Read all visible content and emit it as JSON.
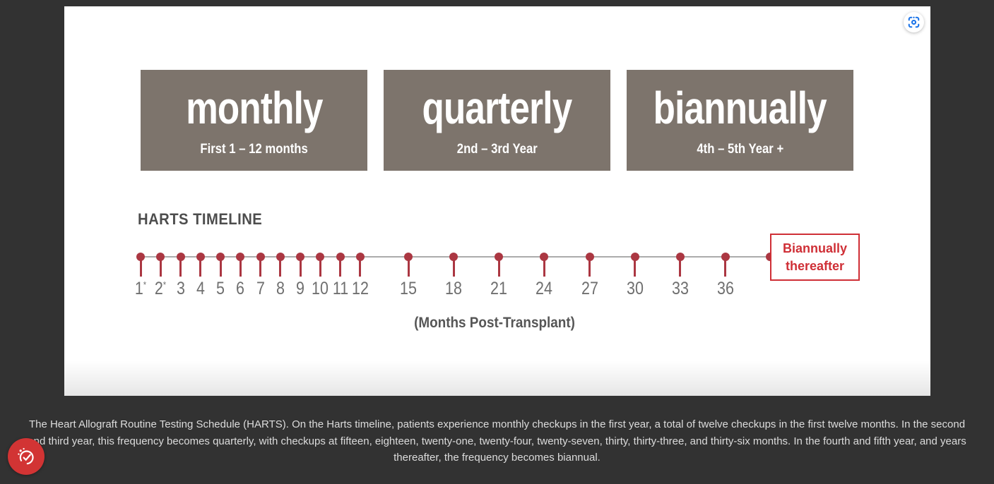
{
  "figure": {
    "boxes": [
      {
        "title": "monthly",
        "subtitle": "First 1 – 12 months"
      },
      {
        "title": "quarterly",
        "subtitle": "2nd – 3rd Year"
      },
      {
        "title": "biannually",
        "subtitle": "4th – 5th Year +"
      }
    ],
    "timeline_heading": "HARTS TIMELINE",
    "axis_label": "(Months Post-Transplant)",
    "end_label": "Biannually thereafter",
    "ticks": [
      {
        "label": "1",
        "sup": "*"
      },
      {
        "label": "2",
        "sup": "*"
      },
      {
        "label": "3"
      },
      {
        "label": "4"
      },
      {
        "label": "5"
      },
      {
        "label": "6"
      },
      {
        "label": "7"
      },
      {
        "label": "8"
      },
      {
        "label": "9"
      },
      {
        "label": "10"
      },
      {
        "label": "11"
      },
      {
        "label": "12"
      },
      {
        "label": "15"
      },
      {
        "label": "18"
      },
      {
        "label": "21"
      },
      {
        "label": "24"
      },
      {
        "label": "27"
      },
      {
        "label": "30"
      },
      {
        "label": "33"
      },
      {
        "label": "36"
      }
    ],
    "colors": {
      "box_fill": "#7d746c",
      "tick_red": "#ab3742",
      "annotation_red": "#cf2f36",
      "line_gray": "#ababab",
      "background": "#323232"
    }
  },
  "chart_data": {
    "type": "timeline",
    "title": "HARTS TIMELINE",
    "xlabel": "(Months Post-Transplant)",
    "checkup_months": [
      1,
      2,
      3,
      4,
      5,
      6,
      7,
      8,
      9,
      10,
      11,
      12,
      15,
      18,
      21,
      24,
      27,
      30,
      33,
      36
    ],
    "asterisk_months": [
      1,
      2
    ],
    "end_annotation": "Biannually thereafter",
    "phases": [
      {
        "frequency": "monthly",
        "period": "First 1 – 12 months"
      },
      {
        "frequency": "quarterly",
        "period": "2nd – 3rd Year"
      },
      {
        "frequency": "biannually",
        "period": "4th – 5th Year +"
      }
    ]
  },
  "caption": {
    "lines": [
      "The Heart Allograft Routine Testing Schedule (HARTS). On the Harts timeline, patients experience monthly checkups in the first year, a total of twelve checkups in the first twelve months. In the second",
      "and third year, this frequency becomes quarterly, with checkups at fifteen, eighteen, twenty-one, twenty-four, twenty-seven, thirty, thirty-three, and thirty-six months. In the fourth and fifth year, and years",
      "thereafter, the frequency becomes biannual."
    ]
  },
  "icons": {
    "lens": "search-in-image-icon",
    "cookie": "cookie-consent-icon"
  }
}
